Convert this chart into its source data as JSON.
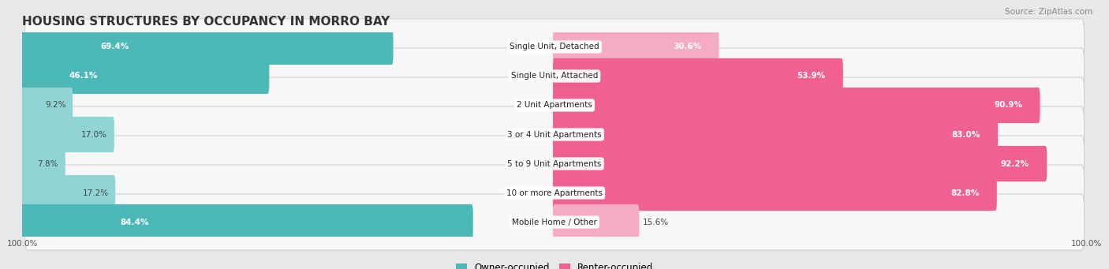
{
  "title": "HOUSING STRUCTURES BY OCCUPANCY IN MORRO BAY",
  "source": "Source: ZipAtlas.com",
  "categories": [
    "Single Unit, Detached",
    "Single Unit, Attached",
    "2 Unit Apartments",
    "3 or 4 Unit Apartments",
    "5 to 9 Unit Apartments",
    "10 or more Apartments",
    "Mobile Home / Other"
  ],
  "owner_pct": [
    69.4,
    46.1,
    9.2,
    17.0,
    7.8,
    17.2,
    84.4
  ],
  "renter_pct": [
    30.6,
    53.9,
    90.9,
    83.0,
    92.2,
    82.8,
    15.6
  ],
  "owner_color": "#4db8b8",
  "renter_color": "#f06090",
  "owner_color_light": "#90d4d4",
  "renter_color_light": "#f5aac5",
  "bg_color": "#e8e8e8",
  "row_bg_color": "#f7f7f7",
  "row_border_color": "#d0d0d0",
  "title_fontsize": 11,
  "label_fontsize": 7.5,
  "source_fontsize": 7.5,
  "bar_height": 0.62,
  "legend_owner": "Owner-occupied",
  "legend_renter": "Renter-occupied",
  "x_min": -100,
  "x_max": 100
}
